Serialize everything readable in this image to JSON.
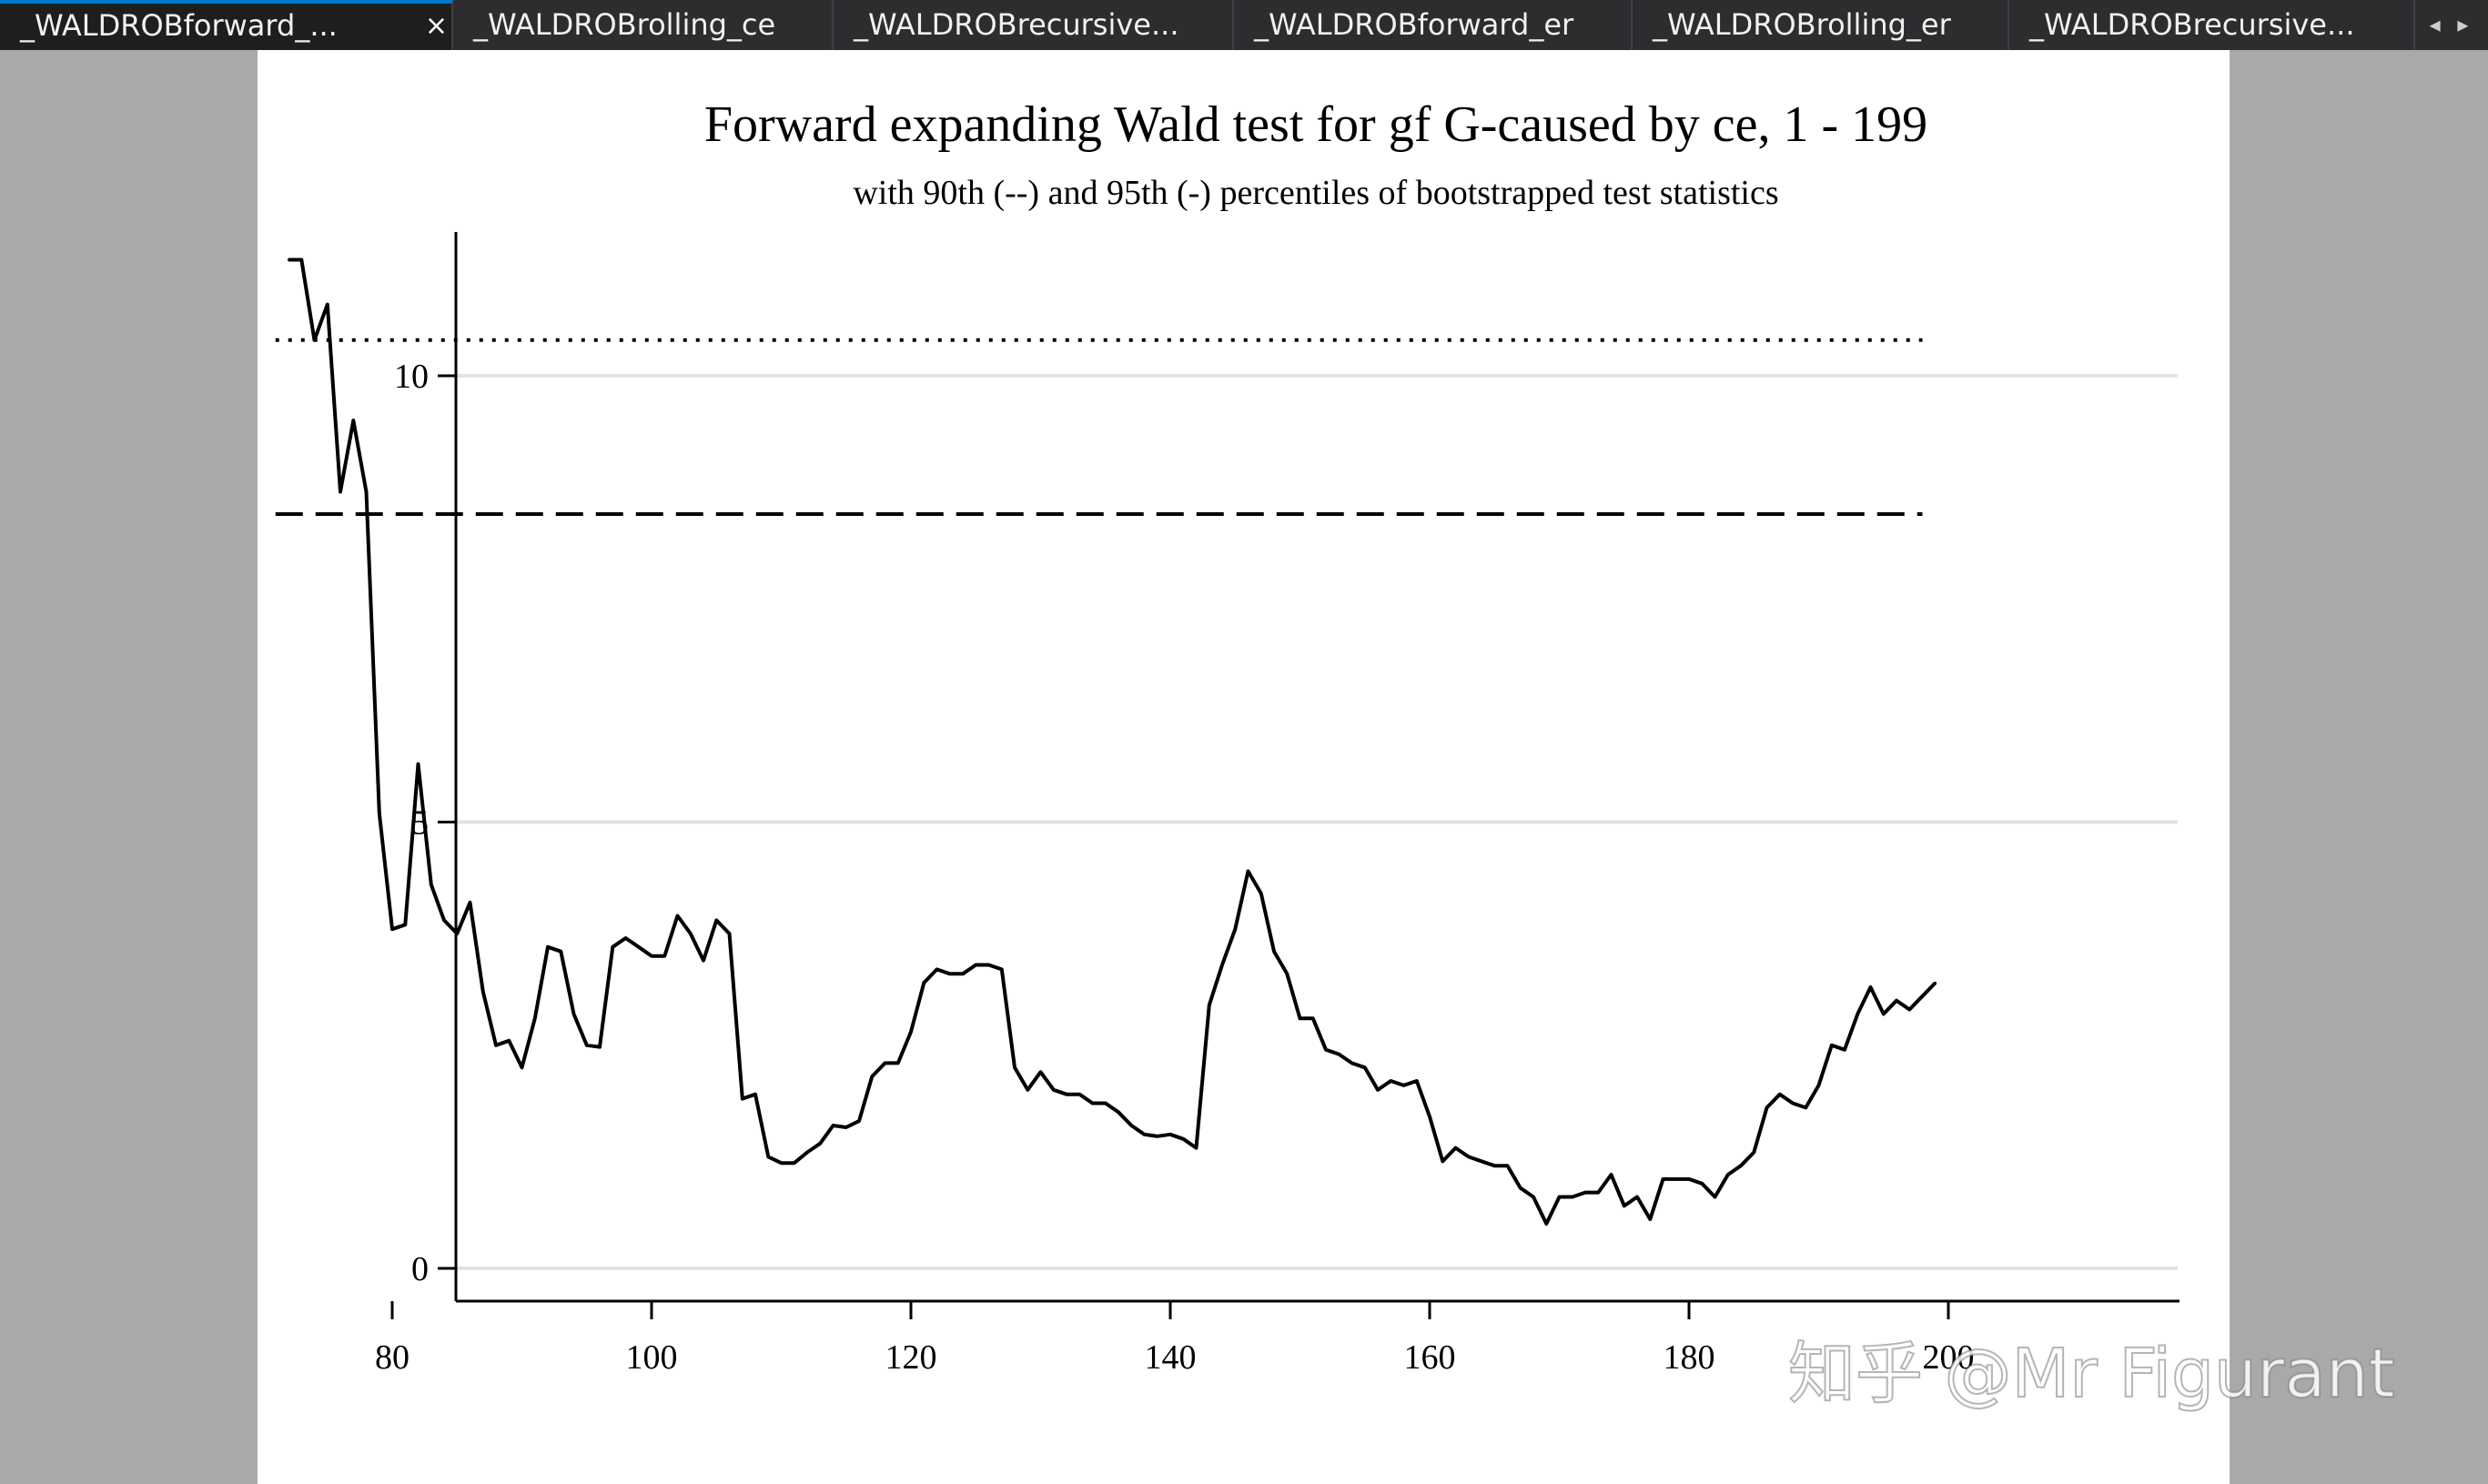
{
  "tabs": [
    {
      "label": "_WALDROBforward_...",
      "active": true,
      "close": "×"
    },
    {
      "label": "_WALDROBrolling_ce",
      "active": false
    },
    {
      "label": "_WALDROBrecursive...",
      "active": false
    },
    {
      "label": "_WALDROBforward_er",
      "active": false
    },
    {
      "label": "_WALDROBrolling_er",
      "active": false
    },
    {
      "label": "_WALDROBrecursive...",
      "active": false
    }
  ],
  "tab_scroll": "◂ ▸",
  "watermark": "知乎 @Mr Figurant",
  "chart_data": {
    "type": "line",
    "title": "Forward expanding Wald test for gf G-caused by ce, 1 - 199",
    "subtitle": "with 90th (--) and 95th (-) percentiles of bootstrapped test statistics",
    "xlabel": "",
    "ylabel": "",
    "xlim": [
      71,
      199
    ],
    "ylim": [
      -0.35,
      11.6
    ],
    "xticks": [
      80,
      100,
      120,
      140,
      160,
      180,
      200
    ],
    "yticks": [
      0,
      5,
      10
    ],
    "grid": "horizontal",
    "legend": "none",
    "reference_lines": [
      {
        "style": "dotted",
        "y": 10.4,
        "x_from": 71,
        "x_to": 198
      },
      {
        "style": "dashed",
        "y": 8.45,
        "x_from": 71,
        "x_to": 198
      }
    ],
    "series": [
      {
        "x": [
          72,
          73,
          74,
          75,
          76,
          77,
          78,
          79,
          80,
          81,
          82,
          83,
          84,
          85,
          86,
          87,
          88,
          89,
          90,
          91,
          92,
          93,
          94,
          95,
          96,
          97,
          98,
          99,
          100,
          101,
          102,
          103,
          104,
          105,
          106,
          107,
          108,
          109,
          110,
          111,
          112,
          113,
          114,
          115,
          116,
          117,
          118,
          119,
          120,
          121,
          122,
          123,
          124,
          125,
          126,
          127,
          128,
          129,
          130,
          131,
          132,
          133,
          134,
          135,
          136,
          137,
          138,
          139,
          140,
          141,
          142,
          143,
          144,
          145,
          146,
          147,
          148,
          149,
          150,
          151,
          152,
          153,
          154,
          155,
          156,
          157,
          158,
          159,
          160,
          161,
          162,
          163,
          164,
          165,
          166,
          167,
          168,
          169,
          170,
          171,
          172,
          173,
          174,
          175,
          176,
          177,
          178,
          179,
          180,
          181,
          182,
          183,
          184,
          185,
          186,
          187,
          188,
          189,
          190,
          191,
          192,
          193,
          194,
          195,
          196,
          197,
          198,
          199
        ],
        "y": [
          11.3,
          11.3,
          10.4,
          10.8,
          8.7,
          9.5,
          8.7,
          5.1,
          3.8,
          3.85,
          5.65,
          4.3,
          3.9,
          3.75,
          4.1,
          3.1,
          2.5,
          2.55,
          2.25,
          2.8,
          3.6,
          3.55,
          2.85,
          2.5,
          2.48,
          3.6,
          3.7,
          3.6,
          3.5,
          3.5,
          3.95,
          3.75,
          3.45,
          3.9,
          3.75,
          1.9,
          1.95,
          1.25,
          1.18,
          1.18,
          1.3,
          1.4,
          1.6,
          1.58,
          1.65,
          2.15,
          2.3,
          2.3,
          2.65,
          3.2,
          3.35,
          3.3,
          3.3,
          3.4,
          3.4,
          3.35,
          2.25,
          2.0,
          2.2,
          2.0,
          1.95,
          1.95,
          1.85,
          1.85,
          1.75,
          1.6,
          1.5,
          1.48,
          1.5,
          1.45,
          1.35,
          2.95,
          3.4,
          3.8,
          4.45,
          4.2,
          3.55,
          3.3,
          2.8,
          2.8,
          2.45,
          2.4,
          2.3,
          2.25,
          2.0,
          2.1,
          2.05,
          2.1,
          1.7,
          1.2,
          1.35,
          1.25,
          1.2,
          1.15,
          1.15,
          0.9,
          0.8,
          0.5,
          0.8,
          0.8,
          0.85,
          0.85,
          1.05,
          0.7,
          0.8,
          0.55,
          1.0,
          1.0,
          1.0,
          0.95,
          0.8,
          1.05,
          1.15,
          1.3,
          1.8,
          1.95,
          1.85,
          1.8,
          2.05,
          2.5,
          2.45,
          2.85,
          3.15,
          2.85,
          3.0,
          2.9,
          3.05,
          3.2
        ]
      }
    ]
  }
}
